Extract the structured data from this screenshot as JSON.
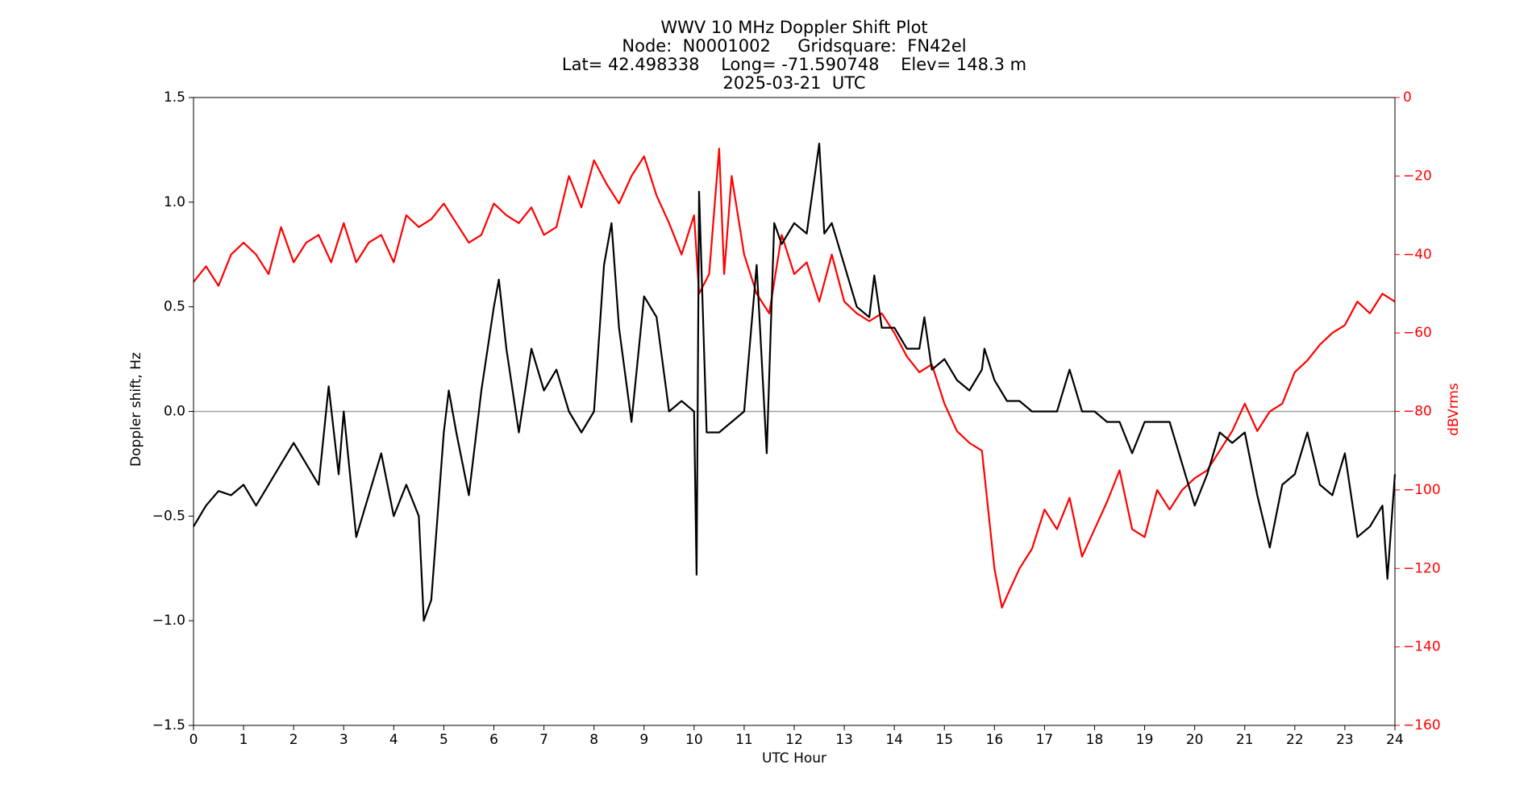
{
  "chart_data": {
    "type": "line",
    "title": [
      "WWV 10 MHz Doppler Shift Plot",
      "Node:  N0001002     Gridsquare:  FN42el",
      "Lat= 42.498338    Long= -71.590748    Elev= 148.3 m",
      "2025-03-21  UTC"
    ],
    "xlabel": "UTC Hour",
    "ylabel": "Doppler shift, Hz",
    "y2label": "dBVrms",
    "xlim": [
      0,
      24
    ],
    "xticks": [
      0,
      1,
      2,
      3,
      4,
      5,
      6,
      7,
      8,
      9,
      10,
      11,
      12,
      13,
      14,
      15,
      16,
      17,
      18,
      19,
      20,
      21,
      22,
      23,
      24
    ],
    "ylim": [
      -1.5,
      1.5
    ],
    "yticks": [
      {
        "value": -1.5,
        "label": "−1.5"
      },
      {
        "value": -1,
        "label": "−1.0"
      },
      {
        "value": -0.5,
        "label": "−0.5"
      },
      {
        "value": 0,
        "label": "0.0"
      },
      0.5,
      {
        "value": 1,
        "label": "1.0"
      },
      1.5
    ],
    "y2lim": [
      -160,
      0
    ],
    "y2ticks": [
      {
        "value": -160,
        "label": "−160"
      },
      {
        "value": -140,
        "label": "−140"
      },
      {
        "value": -120,
        "label": "−120"
      },
      {
        "value": -100,
        "label": "−100"
      },
      {
        "value": -80,
        "label": "−80"
      },
      {
        "value": -60,
        "label": "−60"
      },
      {
        "value": -40,
        "label": "−40"
      },
      {
        "value": -20,
        "label": "−20"
      },
      0
    ],
    "y2color": "#ff0000",
    "axhline": 0,
    "axhline_color": "#a0a0a0",
    "series": [
      {
        "color": "#000000",
        "axis": "y",
        "x": [
          0,
          0.25,
          0.5,
          0.75,
          1,
          1.25,
          1.5,
          1.75,
          2,
          2.25,
          2.5,
          2.7,
          2.9,
          3,
          3.25,
          3.5,
          3.75,
          4,
          4.25,
          4.5,
          4.6,
          4.75,
          5,
          5.1,
          5.25,
          5.5,
          5.75,
          6,
          6.1,
          6.25,
          6.5,
          6.75,
          7,
          7.25,
          7.5,
          7.75,
          8,
          8.2,
          8.35,
          8.5,
          8.75,
          9,
          9.25,
          9.5,
          9.75,
          10,
          10.05,
          10.1,
          10.25,
          10.5,
          10.75,
          11,
          11.25,
          11.45,
          11.6,
          11.75,
          12,
          12.25,
          12.5,
          12.6,
          12.75,
          13,
          13.25,
          13.5,
          13.6,
          13.75,
          14,
          14.25,
          14.5,
          14.6,
          14.75,
          15,
          15.25,
          15.5,
          15.75,
          15.8,
          16,
          16.25,
          16.5,
          16.75,
          17,
          17.25,
          17.5,
          17.75,
          18,
          18.25,
          18.5,
          18.75,
          19,
          19.25,
          19.5,
          19.75,
          20,
          20.25,
          20.5,
          20.75,
          21,
          21.25,
          21.5,
          21.75,
          22,
          22.25,
          22.5,
          22.75,
          23,
          23.25,
          23.5,
          23.75,
          23.85,
          24
        ],
        "values": [
          -0.55,
          -0.45,
          -0.38,
          -0.4,
          -0.35,
          -0.45,
          -0.35,
          -0.25,
          -0.15,
          -0.25,
          -0.35,
          0.12,
          -0.3,
          0,
          -0.6,
          -0.4,
          -0.2,
          -0.5,
          -0.35,
          -0.5,
          -1,
          -0.9,
          -0.1,
          0.1,
          -0.1,
          -0.4,
          0.1,
          0.5,
          0.63,
          0.3,
          -0.1,
          0.3,
          0.1,
          0.2,
          0,
          -0.1,
          0,
          0.7,
          0.9,
          0.4,
          -0.05,
          0.55,
          0.45,
          0,
          0.05,
          0,
          -0.78,
          1.05,
          -0.1,
          -0.1,
          -0.05,
          0,
          0.7,
          -0.2,
          0.9,
          0.8,
          0.9,
          0.85,
          1.28,
          0.85,
          0.9,
          0.7,
          0.5,
          0.45,
          0.65,
          0.4,
          0.4,
          0.3,
          0.3,
          0.45,
          0.2,
          0.25,
          0.15,
          0.1,
          0.2,
          0.3,
          0.15,
          0.05,
          0.05,
          0,
          0,
          0,
          0.2,
          0,
          0,
          -0.05,
          -0.05,
          -0.2,
          -0.05,
          -0.05,
          -0.05,
          -0.25,
          -0.45,
          -0.3,
          -0.1,
          -0.15,
          -0.1,
          -0.4,
          -0.65,
          -0.35,
          -0.3,
          -0.1,
          -0.35,
          -0.4,
          -0.2,
          -0.6,
          -0.55,
          -0.45,
          -0.8,
          -0.3
        ]
      },
      {
        "color": "#ff0000",
        "axis": "y2",
        "x": [
          0,
          0.25,
          0.5,
          0.75,
          1,
          1.25,
          1.5,
          1.75,
          2,
          2.25,
          2.5,
          2.75,
          3,
          3.25,
          3.5,
          3.75,
          4,
          4.25,
          4.5,
          4.75,
          5,
          5.25,
          5.5,
          5.75,
          6,
          6.25,
          6.5,
          6.75,
          7,
          7.25,
          7.5,
          7.75,
          8,
          8.25,
          8.5,
          8.75,
          9,
          9.25,
          9.5,
          9.75,
          10,
          10.1,
          10.3,
          10.5,
          10.6,
          10.75,
          11,
          11.25,
          11.5,
          11.75,
          12,
          12.25,
          12.5,
          12.75,
          13,
          13.25,
          13.5,
          13.75,
          14,
          14.25,
          14.5,
          14.75,
          15,
          15.25,
          15.5,
          15.75,
          16,
          16.15,
          16.25,
          16.5,
          16.75,
          17,
          17.25,
          17.5,
          17.75,
          18,
          18.25,
          18.5,
          18.75,
          19,
          19.25,
          19.5,
          19.75,
          20,
          20.25,
          20.5,
          20.75,
          21,
          21.25,
          21.5,
          21.75,
          22,
          22.25,
          22.5,
          22.75,
          23,
          23.25,
          23.5,
          23.75,
          24
        ],
        "values": [
          -47,
          -43,
          -48,
          -40,
          -37,
          -40,
          -45,
          -33,
          -42,
          -37,
          -35,
          -42,
          -32,
          -42,
          -37,
          -35,
          -42,
          -30,
          -33,
          -31,
          -27,
          -32,
          -37,
          -35,
          -27,
          -30,
          -32,
          -28,
          -35,
          -33,
          -20,
          -28,
          -16,
          -22,
          -27,
          -20,
          -15,
          -25,
          -32,
          -40,
          -30,
          -50,
          -45,
          -13,
          -45,
          -20,
          -40,
          -50,
          -55,
          -35,
          -45,
          -42,
          -52,
          -40,
          -52,
          -55,
          -57,
          -55,
          -60,
          -66,
          -70,
          -68,
          -78,
          -85,
          -88,
          -90,
          -120,
          -130,
          -127,
          -120,
          -115,
          -105,
          -110,
          -102,
          -117,
          -110,
          -103,
          -95,
          -110,
          -112,
          -100,
          -105,
          -100,
          -97,
          -95,
          -90,
          -85,
          -78,
          -85,
          -80,
          -78,
          -70,
          -67,
          -63,
          -60,
          -58,
          -52,
          -55,
          -50,
          -52
        ]
      }
    ]
  }
}
